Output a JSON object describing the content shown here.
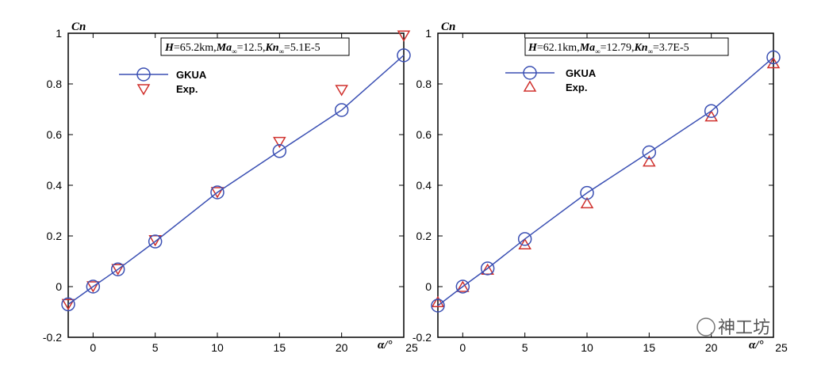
{
  "chart_data": [
    {
      "type": "line",
      "id": "left",
      "annotation": {
        "h_label": "H",
        "h_value": "=65.2km,",
        "ma_label": "Ma",
        "ma_sub": "∞",
        "ma_value": "=12.5,",
        "kn_label": "Kn",
        "kn_sub": "∞",
        "kn_value": "=5.1E-5"
      },
      "ylabel": "Cn",
      "xlabel": "α/°",
      "xlim": [
        -2,
        25
      ],
      "ylim": [
        -0.2,
        1.0
      ],
      "xticks": [
        "0",
        "5",
        "10",
        "15",
        "20",
        "25"
      ],
      "yticks": [
        "-0.2",
        "0",
        "0.2",
        "0.4",
        "0.6",
        "0.8",
        "1"
      ],
      "series": [
        {
          "name": "GKUA",
          "marker": "circle",
          "color": "#3a4fb3",
          "x": [
            -2,
            0,
            2,
            5,
            10,
            15,
            20,
            25
          ],
          "y": [
            -0.07,
            0.0,
            0.068,
            0.178,
            0.372,
            0.535,
            0.697,
            0.913
          ]
        },
        {
          "name": "Exp.",
          "marker": "triangle-down",
          "color": "#d0312d",
          "x": [
            -2,
            0,
            2,
            5,
            10,
            15,
            20,
            25
          ],
          "y": [
            -0.07,
            0.0,
            0.068,
            0.182,
            0.372,
            0.57,
            0.775,
            0.99
          ]
        }
      ]
    },
    {
      "type": "line",
      "id": "right",
      "annotation": {
        "h_label": "H",
        "h_value": "=62.1km,",
        "ma_label": "Ma",
        "ma_sub": "∞",
        "ma_value": "=12.79,",
        "kn_label": "Kn",
        "kn_sub": "∞",
        "kn_value": "=3.7E-5"
      },
      "ylabel": "Cn",
      "xlabel": "α/°",
      "xlim": [
        -2,
        25
      ],
      "ylim": [
        -0.2,
        1.0
      ],
      "xticks": [
        "0",
        "5",
        "10",
        "15",
        "20",
        "25"
      ],
      "yticks": [
        "-0.2",
        "0",
        "0.2",
        "0.4",
        "0.6",
        "0.8",
        "1"
      ],
      "series": [
        {
          "name": "GKUA",
          "marker": "circle",
          "color": "#3a4fb3",
          "x": [
            -2,
            0,
            2,
            5,
            10,
            15,
            20,
            25
          ],
          "y": [
            -0.075,
            0.0,
            0.072,
            0.188,
            0.37,
            0.53,
            0.693,
            0.905
          ]
        },
        {
          "name": "Exp.",
          "marker": "triangle-up",
          "color": "#d0312d",
          "x": [
            -2,
            0,
            2,
            5,
            10,
            15,
            20,
            25
          ],
          "y": [
            -0.06,
            0.0,
            0.068,
            0.168,
            0.33,
            0.495,
            0.673,
            0.883
          ]
        }
      ]
    }
  ],
  "watermark": {
    "text": "神工坊"
  }
}
